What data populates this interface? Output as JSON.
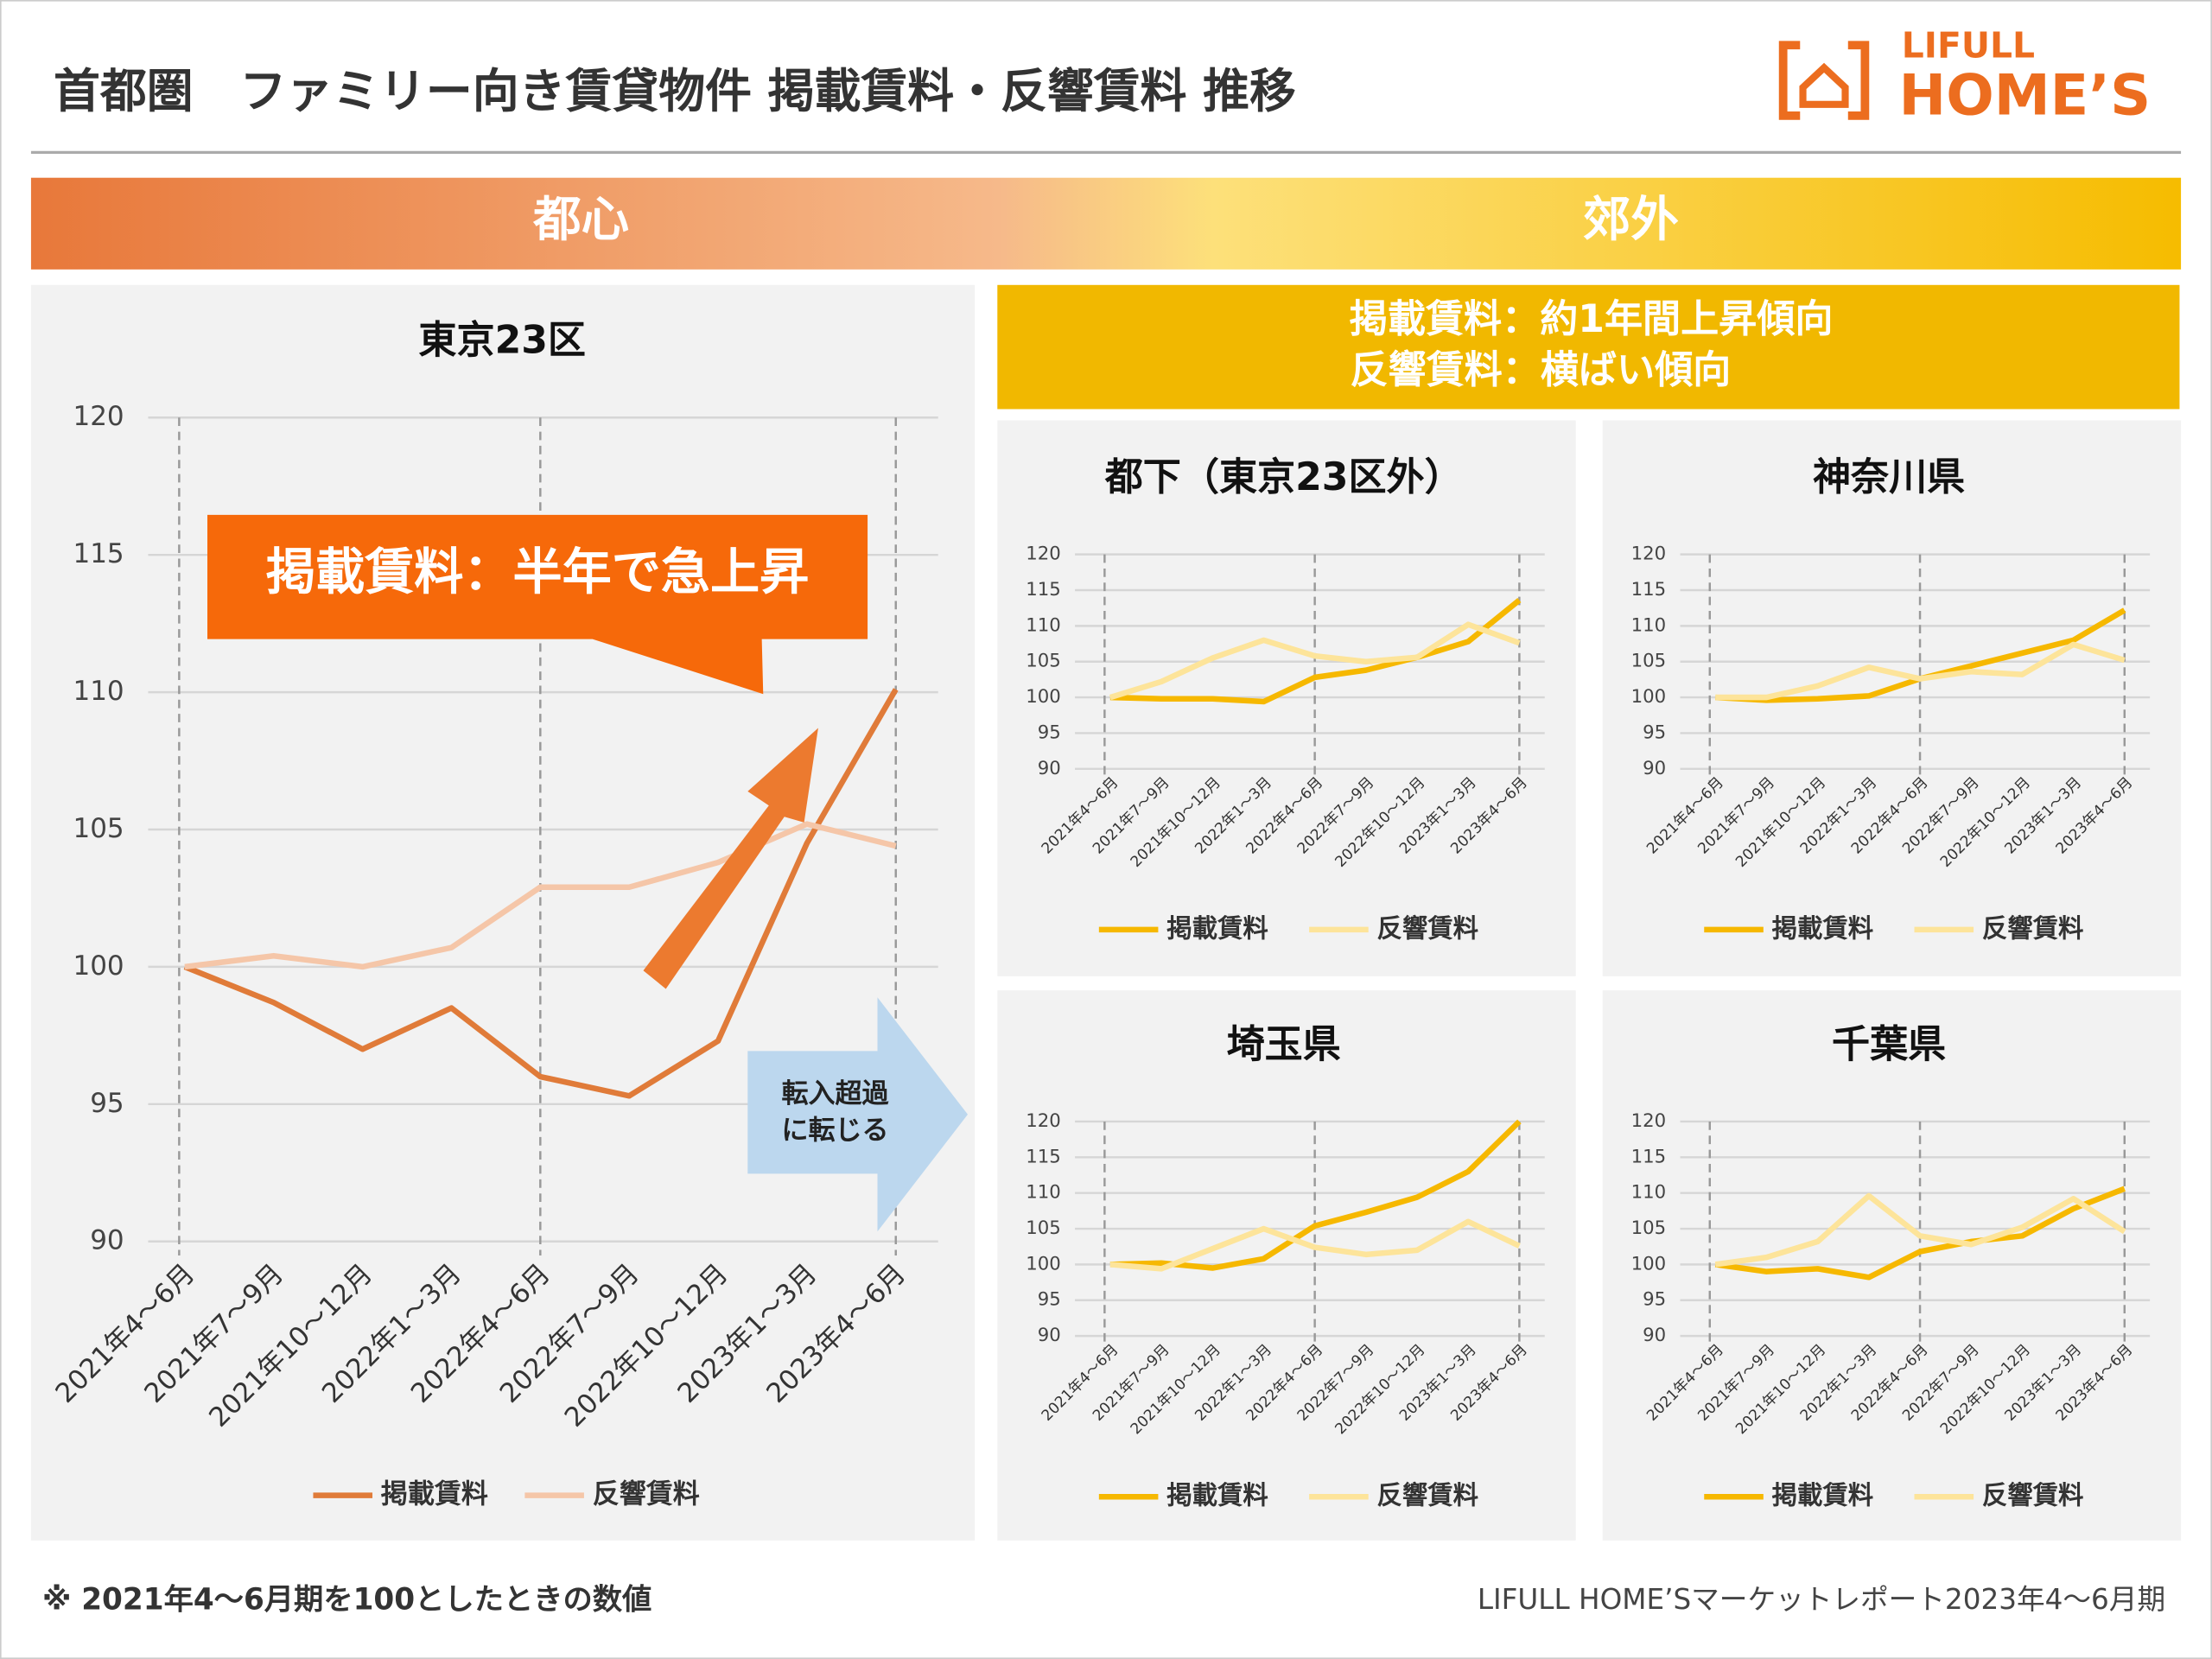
{
  "title": "首都圏　ファミリー向き賃貸物件 掲載賃料・反響賃料 推移",
  "brand": {
    "top": "LIFULL",
    "bottom": "HOME’S"
  },
  "banner": {
    "left": "都心",
    "right": "郊外"
  },
  "annotations": {
    "surge": "掲載賃料：半年で急上昇",
    "migration": [
      "転入超過",
      "に転じる"
    ],
    "suburb": [
      "掲載賃料：約1年間上昇傾向",
      "反響賃料：横ばい傾向"
    ]
  },
  "footnote": "※ 2021年4～6月期を100としたときの数値",
  "source": "LIFULL HOME’Sマーケットレポート2023年4～6月期",
  "chart_data": [
    {
      "type": "line",
      "title": "東京23区",
      "categories": [
        "2021年4～6月",
        "2021年7～9月",
        "2021年10～12月",
        "2022年1～3月",
        "2022年4～6月",
        "2022年7～9月",
        "2022年10～12月",
        "2023年1～3月",
        "2023年4～6月"
      ],
      "series": [
        {
          "name": "掲載賃料",
          "color": "#e07b39",
          "values": [
            100,
            98.7,
            97.0,
            98.5,
            96.0,
            95.3,
            97.3,
            104.5,
            110.1
          ]
        },
        {
          "name": "反響賃料",
          "color": "#f5c6a8",
          "values": [
            100,
            100.4,
            100.0,
            100.7,
            102.9,
            102.9,
            103.8,
            105.2,
            104.4
          ]
        }
      ],
      "ylim": [
        90,
        120
      ],
      "yticks": [
        90,
        95,
        100,
        105,
        110,
        115,
        120
      ],
      "grid": true
    },
    {
      "type": "line",
      "title": "都下（東京23区外）",
      "categories": [
        "2021年4～6月",
        "2021年7～9月",
        "2021年10～12月",
        "2022年1～3月",
        "2022年4～6月",
        "2022年7～9月",
        "2022年10～12月",
        "2023年1～3月",
        "2023年4～6月"
      ],
      "series": [
        {
          "name": "掲載賃料",
          "color": "#f6b800",
          "values": [
            100,
            99.8,
            99.8,
            99.4,
            102.8,
            103.8,
            105.6,
            107.8,
            113.6
          ]
        },
        {
          "name": "反響賃料",
          "color": "#fde49a",
          "values": [
            100,
            102.2,
            105.5,
            108,
            105.8,
            105,
            105.6,
            110.2,
            107.6
          ]
        }
      ],
      "ylim": [
        90,
        120
      ],
      "yticks": [
        90,
        95,
        100,
        105,
        110,
        115,
        120
      ],
      "grid": true
    },
    {
      "type": "line",
      "title": "神奈川県",
      "categories": [
        "2021年4～6月",
        "2021年7～9月",
        "2021年10～12月",
        "2022年1～3月",
        "2022年4～6月",
        "2022年7～9月",
        "2022年10～12月",
        "2023年1～3月",
        "2023年4～6月"
      ],
      "series": [
        {
          "name": "掲載賃料",
          "color": "#f6b800",
          "values": [
            100,
            99.6,
            99.8,
            100.2,
            102.6,
            104.4,
            106.2,
            108,
            112.2
          ]
        },
        {
          "name": "反響賃料",
          "color": "#fde49a",
          "values": [
            100,
            100,
            101.6,
            104.2,
            102.6,
            103.6,
            103.2,
            107.4,
            105.2
          ]
        }
      ],
      "ylim": [
        90,
        120
      ],
      "yticks": [
        90,
        95,
        100,
        105,
        110,
        115,
        120
      ],
      "grid": true
    },
    {
      "type": "line",
      "title": "埼玉県",
      "categories": [
        "2021年4～6月",
        "2021年7～9月",
        "2021年10～12月",
        "2022年1～3月",
        "2022年4～6月",
        "2022年7～9月",
        "2022年10～12月",
        "2023年1～3月",
        "2023年4～6月"
      ],
      "series": [
        {
          "name": "掲載賃料",
          "color": "#f6b800",
          "values": [
            100,
            100.2,
            99.5,
            100.8,
            105.4,
            107.3,
            109.4,
            113,
            120
          ]
        },
        {
          "name": "反響賃料",
          "color": "#fde49a",
          "values": [
            100,
            99.4,
            102.2,
            105,
            102.4,
            101.4,
            102,
            106,
            102.6
          ]
        }
      ],
      "ylim": [
        90,
        120
      ],
      "yticks": [
        90,
        95,
        100,
        105,
        110,
        115,
        120
      ],
      "grid": true
    },
    {
      "type": "line",
      "title": "千葉県",
      "categories": [
        "2021年4～6月",
        "2021年7～9月",
        "2021年10～12月",
        "2022年1～3月",
        "2022年4～6月",
        "2022年7～9月",
        "2022年10～12月",
        "2023年1～3月",
        "2023年4～6月"
      ],
      "series": [
        {
          "name": "掲載賃料",
          "color": "#f6b800",
          "values": [
            100,
            99,
            99.4,
            98.2,
            101.8,
            103.2,
            104,
            107.8,
            110.6
          ]
        },
        {
          "name": "反響賃料",
          "color": "#fde49a",
          "values": [
            100,
            101,
            103.2,
            109.6,
            104,
            102.8,
            105.2,
            109.2,
            104.6
          ]
        }
      ],
      "ylim": [
        90,
        120
      ],
      "yticks": [
        90,
        95,
        100,
        105,
        110,
        115,
        120
      ],
      "grid": true
    }
  ]
}
